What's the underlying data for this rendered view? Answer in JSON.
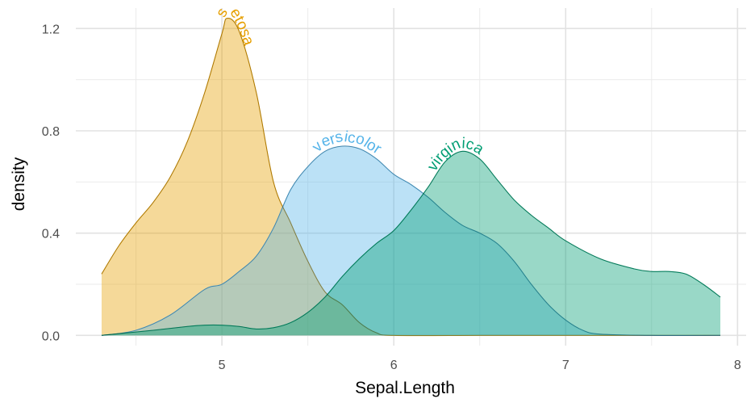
{
  "chart_data": {
    "type": "area",
    "title": "",
    "xlabel": "Sepal.Length",
    "ylabel": "density",
    "xlim": [
      4.15,
      8.05
    ],
    "ylim": [
      -0.04,
      1.28
    ],
    "x_ticks": [
      5,
      6,
      7,
      8
    ],
    "x_tick_labels": [
      "5",
      "6",
      "7",
      "8"
    ],
    "x_minor_ticks": [
      4.5,
      5.5,
      6.5,
      7.5
    ],
    "y_ticks": [
      0.0,
      0.4,
      0.8,
      1.2
    ],
    "y_tick_labels": [
      "0.0",
      "0.4",
      "0.8",
      "1.2"
    ],
    "y_minor_ticks": [
      0.2,
      0.6,
      1.0
    ],
    "grid": true,
    "legend": "none (direct labels on curves)",
    "series": [
      {
        "name": "setosa",
        "color": "#E69F00",
        "fill_opacity": 0.4,
        "label_x": 5.03,
        "points": [
          [
            4.3,
            0.24
          ],
          [
            4.4,
            0.35
          ],
          [
            4.5,
            0.44
          ],
          [
            4.6,
            0.52
          ],
          [
            4.7,
            0.62
          ],
          [
            4.8,
            0.76
          ],
          [
            4.9,
            0.95
          ],
          [
            5.0,
            1.18
          ],
          [
            5.03,
            1.24
          ],
          [
            5.1,
            1.19
          ],
          [
            5.2,
            0.95
          ],
          [
            5.3,
            0.6
          ],
          [
            5.4,
            0.44
          ],
          [
            5.5,
            0.29
          ],
          [
            5.6,
            0.17
          ],
          [
            5.7,
            0.12
          ],
          [
            5.8,
            0.05
          ],
          [
            5.9,
            0.01
          ],
          [
            6.0,
            0.0
          ],
          [
            6.5,
            0.0
          ],
          [
            7.0,
            0.0
          ],
          [
            7.9,
            0.0
          ]
        ]
      },
      {
        "name": "versicolor",
        "color": "#56B4E9",
        "fill_opacity": 0.4,
        "label_x": 5.75,
        "points": [
          [
            4.3,
            0.0
          ],
          [
            4.5,
            0.02
          ],
          [
            4.7,
            0.08
          ],
          [
            4.9,
            0.18
          ],
          [
            5.0,
            0.2
          ],
          [
            5.1,
            0.25
          ],
          [
            5.2,
            0.31
          ],
          [
            5.3,
            0.42
          ],
          [
            5.4,
            0.57
          ],
          [
            5.5,
            0.66
          ],
          [
            5.6,
            0.72
          ],
          [
            5.7,
            0.74
          ],
          [
            5.8,
            0.73
          ],
          [
            5.9,
            0.69
          ],
          [
            6.0,
            0.63
          ],
          [
            6.1,
            0.59
          ],
          [
            6.2,
            0.54
          ],
          [
            6.3,
            0.48
          ],
          [
            6.4,
            0.43
          ],
          [
            6.5,
            0.4
          ],
          [
            6.6,
            0.36
          ],
          [
            6.7,
            0.29
          ],
          [
            6.8,
            0.2
          ],
          [
            6.9,
            0.12
          ],
          [
            7.0,
            0.06
          ],
          [
            7.1,
            0.02
          ],
          [
            7.2,
            0.005
          ],
          [
            7.5,
            0.0
          ],
          [
            7.9,
            0.0
          ]
        ]
      },
      {
        "name": "virginica",
        "color": "#009E73",
        "fill_opacity": 0.4,
        "label_x": 6.38,
        "points": [
          [
            4.3,
            0.0
          ],
          [
            4.6,
            0.02
          ],
          [
            4.8,
            0.035
          ],
          [
            4.9,
            0.04
          ],
          [
            5.0,
            0.04
          ],
          [
            5.1,
            0.035
          ],
          [
            5.2,
            0.025
          ],
          [
            5.3,
            0.03
          ],
          [
            5.4,
            0.05
          ],
          [
            5.5,
            0.09
          ],
          [
            5.6,
            0.15
          ],
          [
            5.7,
            0.23
          ],
          [
            5.8,
            0.3
          ],
          [
            5.9,
            0.36
          ],
          [
            6.0,
            0.41
          ],
          [
            6.1,
            0.49
          ],
          [
            6.2,
            0.58
          ],
          [
            6.3,
            0.68
          ],
          [
            6.4,
            0.72
          ],
          [
            6.5,
            0.69
          ],
          [
            6.6,
            0.61
          ],
          [
            6.7,
            0.53
          ],
          [
            6.8,
            0.47
          ],
          [
            6.9,
            0.42
          ],
          [
            7.0,
            0.37
          ],
          [
            7.2,
            0.3
          ],
          [
            7.4,
            0.26
          ],
          [
            7.5,
            0.25
          ],
          [
            7.6,
            0.25
          ],
          [
            7.7,
            0.24
          ],
          [
            7.8,
            0.2
          ],
          [
            7.9,
            0.15
          ]
        ]
      }
    ]
  }
}
